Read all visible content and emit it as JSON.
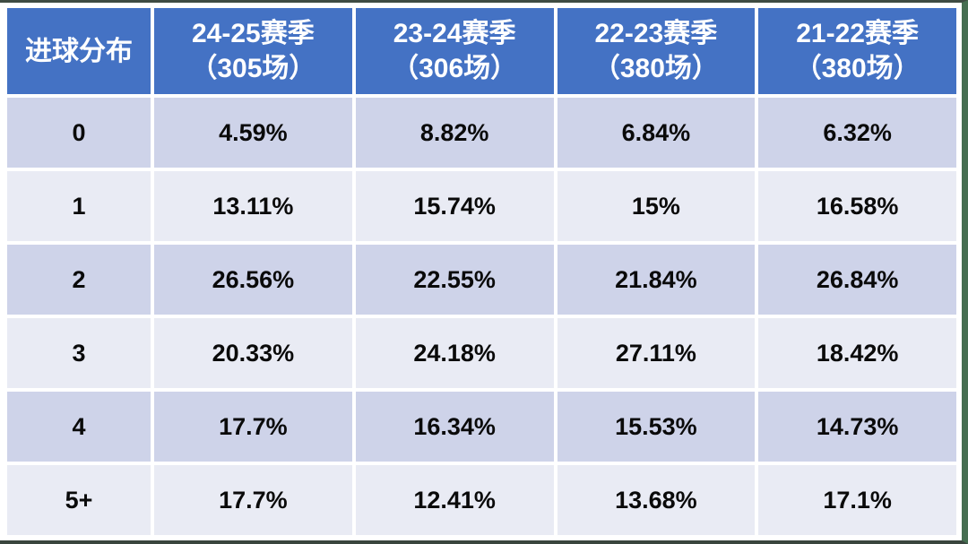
{
  "table": {
    "corner_label": "进球分布",
    "season_headers": [
      {
        "line1": "24-25赛季",
        "line2": "（305场）"
      },
      {
        "line1": "23-24赛季",
        "line2": "（306场）"
      },
      {
        "line1": "22-23赛季",
        "line2": "（380场）"
      },
      {
        "line1": "21-22赛季",
        "line2": "（380场）"
      }
    ],
    "rows": [
      {
        "label": "0",
        "values": [
          "4.59%",
          "8.82%",
          "6.84%",
          "6.32%"
        ]
      },
      {
        "label": "1",
        "values": [
          "13.11%",
          "15.74%",
          "15%",
          "16.58%"
        ]
      },
      {
        "label": "2",
        "values": [
          "26.56%",
          "22.55%",
          "21.84%",
          "26.84%"
        ]
      },
      {
        "label": "3",
        "values": [
          "20.33%",
          "24.18%",
          "27.11%",
          "18.42%"
        ]
      },
      {
        "label": "4",
        "values": [
          "17.7%",
          "16.34%",
          "15.53%",
          "14.73%"
        ]
      },
      {
        "label": "5+",
        "values": [
          "17.7%",
          "12.41%",
          "13.68%",
          "17.1%"
        ]
      }
    ],
    "colors": {
      "header_bg": "#4472c4",
      "header_text": "#ffffff",
      "band_dark": "#ced3e9",
      "band_light": "#e9ebf4",
      "frame_green": "#466e51",
      "frame_dark": "#3e4b42",
      "value_text": "#0a0a0a"
    }
  },
  "chart_data": {
    "type": "table",
    "title": "进球分布",
    "categories": [
      "0",
      "1",
      "2",
      "3",
      "4",
      "5+"
    ],
    "series": [
      {
        "name": "24-25赛季（305场）",
        "values": [
          4.59,
          13.11,
          26.56,
          20.33,
          17.7,
          17.7
        ]
      },
      {
        "name": "23-24赛季（306场）",
        "values": [
          8.82,
          15.74,
          22.55,
          24.18,
          16.34,
          12.41
        ]
      },
      {
        "name": "22-23赛季（380场）",
        "values": [
          6.84,
          15.0,
          21.84,
          27.11,
          15.53,
          13.68
        ]
      },
      {
        "name": "21-22赛季（380场）",
        "values": [
          6.32,
          16.58,
          26.84,
          18.42,
          14.73,
          17.1
        ]
      }
    ],
    "value_unit": "%",
    "legend_position": "header-row",
    "grid": "white-cell-gaps"
  }
}
